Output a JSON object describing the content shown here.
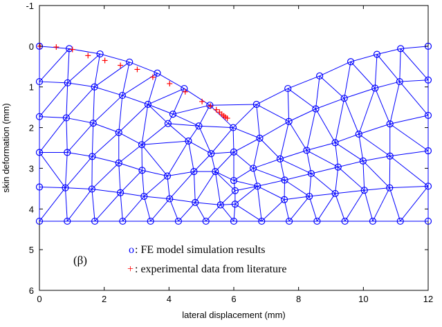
{
  "chart_data": {
    "type": "scatter",
    "xlabel": "lateral displacement (mm)",
    "ylabel": "skin deformation (mm)",
    "xlim": [
      0,
      12
    ],
    "ylim": [
      -1,
      6
    ],
    "y_axis_reversed": true,
    "xticks": [
      0,
      2,
      4,
      6,
      8,
      10,
      12
    ],
    "yticks": [
      -1,
      0,
      1,
      2,
      3,
      4,
      5,
      6
    ],
    "grid": false,
    "label_beta": "(β)",
    "legend": {
      "placement": "bottom-center",
      "entries": [
        {
          "symbol": "o",
          "text": ": FE model simulation results",
          "color": "#0000ff"
        },
        {
          "symbol": "+",
          "text": ": experimental data from literature",
          "color": "#ff0000"
        }
      ]
    },
    "mesh": {
      "color": "#0000ff",
      "nodes": [
        [
          0.0,
          0.0
        ],
        [
          0.92,
          0.06
        ],
        [
          1.87,
          0.19
        ],
        [
          2.78,
          0.39
        ],
        [
          3.64,
          0.66
        ],
        [
          4.47,
          1.04
        ],
        [
          5.26,
          1.45
        ],
        [
          5.98,
          2.0
        ],
        [
          6.7,
          1.43
        ],
        [
          7.67,
          1.04
        ],
        [
          8.65,
          0.73
        ],
        [
          9.61,
          0.38
        ],
        [
          10.42,
          0.2
        ],
        [
          11.15,
          0.06
        ],
        [
          12.0,
          0.0
        ],
        [
          0.0,
          0.87
        ],
        [
          0.87,
          0.9
        ],
        [
          1.7,
          1.0
        ],
        [
          2.56,
          1.21
        ],
        [
          3.35,
          1.43
        ],
        [
          4.12,
          1.67
        ],
        [
          4.92,
          1.96
        ],
        [
          6.0,
          2.6
        ],
        [
          6.8,
          2.26
        ],
        [
          7.7,
          1.85
        ],
        [
          8.53,
          1.54
        ],
        [
          9.41,
          1.28
        ],
        [
          10.36,
          1.03
        ],
        [
          11.12,
          0.87
        ],
        [
          12.0,
          0.83
        ],
        [
          0.0,
          1.73
        ],
        [
          0.83,
          1.76
        ],
        [
          1.66,
          1.89
        ],
        [
          2.45,
          2.12
        ],
        [
          3.16,
          2.42
        ],
        [
          3.97,
          1.9
        ],
        [
          4.6,
          2.33
        ],
        [
          5.3,
          2.64
        ],
        [
          6.0,
          3.3
        ],
        [
          6.6,
          3.0
        ],
        [
          7.43,
          2.77
        ],
        [
          8.25,
          2.56
        ],
        [
          9.13,
          2.37
        ],
        [
          9.86,
          2.16
        ],
        [
          10.82,
          1.91
        ],
        [
          12.0,
          1.7
        ],
        [
          0.0,
          2.61
        ],
        [
          0.86,
          2.61
        ],
        [
          1.63,
          2.71
        ],
        [
          2.45,
          2.87
        ],
        [
          3.17,
          3.05
        ],
        [
          3.95,
          3.19
        ],
        [
          4.77,
          3.08
        ],
        [
          5.43,
          3.08
        ],
        [
          6.04,
          3.55
        ],
        [
          6.73,
          3.44
        ],
        [
          7.57,
          3.29
        ],
        [
          8.39,
          3.13
        ],
        [
          9.22,
          2.97
        ],
        [
          9.99,
          2.82
        ],
        [
          10.82,
          2.7
        ],
        [
          12.0,
          2.57
        ],
        [
          0.0,
          3.46
        ],
        [
          0.8,
          3.48
        ],
        [
          1.62,
          3.51
        ],
        [
          2.5,
          3.6
        ],
        [
          3.23,
          3.69
        ],
        [
          4.02,
          3.75
        ],
        [
          4.81,
          3.84
        ],
        [
          5.59,
          3.9
        ],
        [
          6.04,
          3.88
        ],
        [
          7.56,
          3.77
        ],
        [
          8.33,
          3.69
        ],
        [
          9.13,
          3.62
        ],
        [
          10.03,
          3.54
        ],
        [
          10.81,
          3.48
        ],
        [
          12.0,
          3.44
        ],
        [
          0.0,
          4.3
        ],
        [
          0.86,
          4.3
        ],
        [
          1.71,
          4.3
        ],
        [
          2.57,
          4.3
        ],
        [
          3.43,
          4.3
        ],
        [
          4.29,
          4.3
        ],
        [
          5.14,
          4.3
        ],
        [
          6.0,
          4.3
        ],
        [
          6.86,
          4.3
        ],
        [
          7.71,
          4.3
        ],
        [
          8.57,
          4.3
        ],
        [
          9.43,
          4.3
        ],
        [
          10.29,
          4.3
        ],
        [
          11.14,
          4.3
        ],
        [
          12.0,
          4.3
        ]
      ]
    },
    "experimental": [
      [
        0.02,
        0.0
      ],
      [
        0.52,
        0.02
      ],
      [
        1.02,
        0.08
      ],
      [
        1.5,
        0.23
      ],
      [
        2.02,
        0.35
      ],
      [
        2.5,
        0.47
      ],
      [
        3.02,
        0.57
      ],
      [
        3.5,
        0.76
      ],
      [
        4.02,
        0.92
      ],
      [
        4.5,
        1.12
      ],
      [
        5.02,
        1.36
      ],
      [
        5.28,
        1.47
      ],
      [
        5.46,
        1.56
      ],
      [
        5.56,
        1.62
      ],
      [
        5.63,
        1.67
      ],
      [
        5.69,
        1.71
      ],
      [
        5.74,
        1.74
      ],
      [
        5.8,
        1.77
      ]
    ]
  }
}
